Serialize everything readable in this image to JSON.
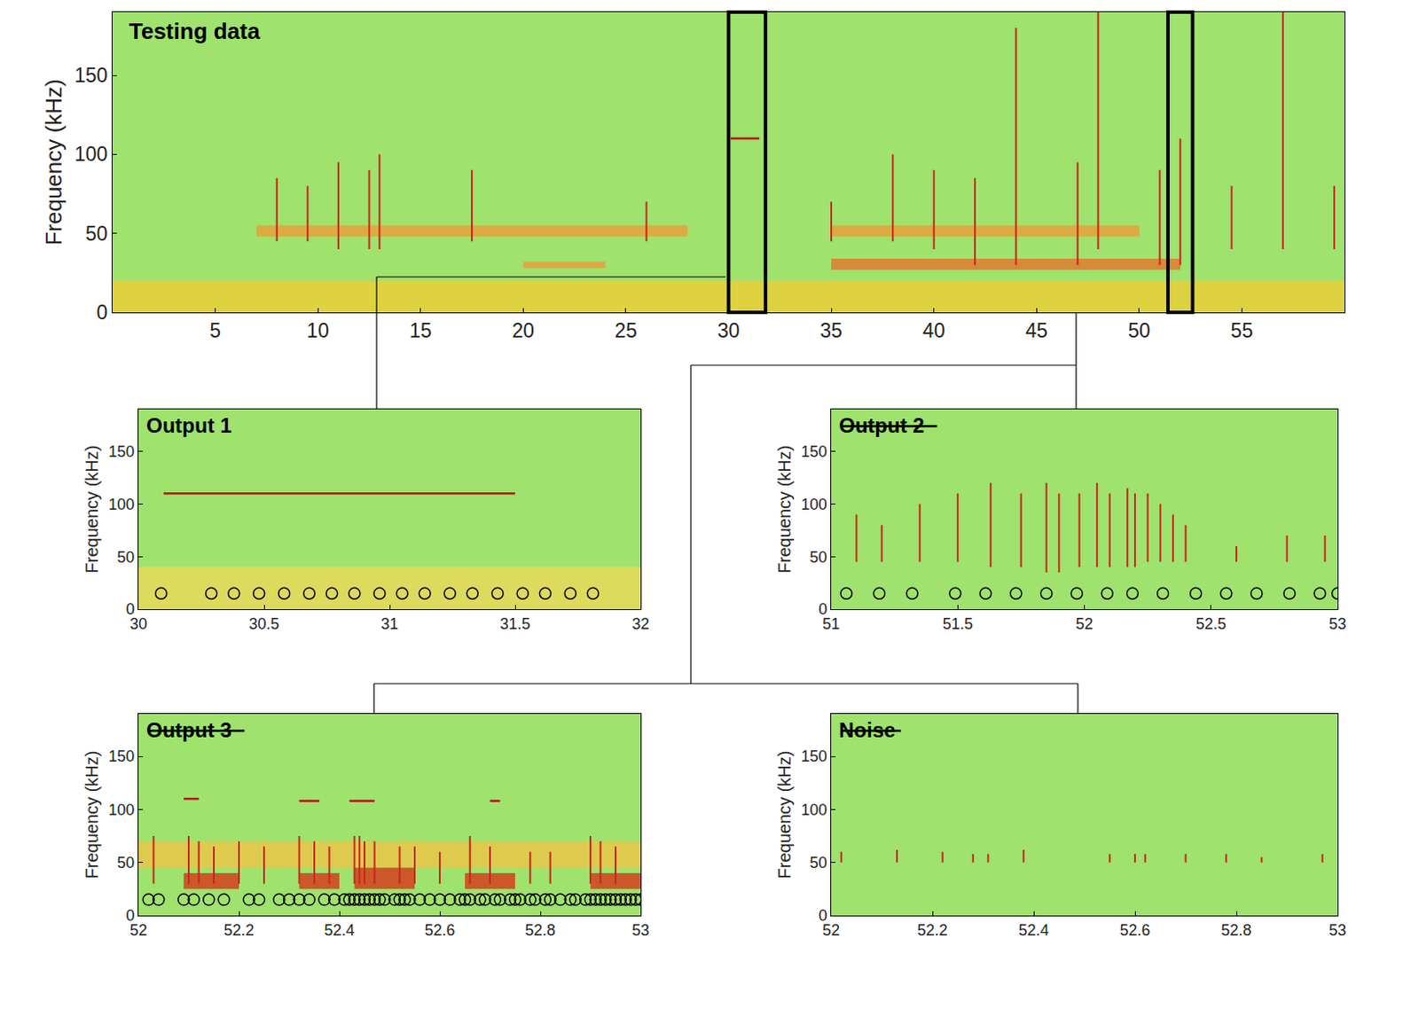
{
  "chart_data": [
    {
      "type": "spectrogram",
      "title": "Testing data",
      "ylabel": "Frequency (kHz)",
      "xlim": [
        0,
        60
      ],
      "xticks": [
        5,
        10,
        15,
        20,
        25,
        30,
        35,
        40,
        45,
        50,
        55
      ],
      "ylim": [
        0,
        190
      ],
      "yticks": [
        0,
        50,
        100,
        150
      ],
      "bands": [
        {
          "x": [
            0,
            60
          ],
          "y": [
            0,
            20
          ],
          "color": "#e9cf3a"
        },
        {
          "x": [
            7,
            28
          ],
          "y": [
            48,
            55
          ],
          "color": "#e8a03a"
        },
        {
          "x": [
            35,
            50
          ],
          "y": [
            48,
            55
          ],
          "color": "#e8a03a"
        },
        {
          "x": [
            35,
            52
          ],
          "y": [
            27,
            34
          ],
          "color": "#e07a2e"
        },
        {
          "x": [
            20,
            24
          ],
          "y": [
            28,
            32
          ],
          "color": "#e8a03a"
        }
      ],
      "clicks": [
        [
          8,
          45,
          85
        ],
        [
          9.5,
          45,
          80
        ],
        [
          11,
          40,
          95
        ],
        [
          12.5,
          40,
          90
        ],
        [
          13,
          40,
          100
        ],
        [
          17.5,
          45,
          90
        ],
        [
          26,
          45,
          70
        ],
        [
          35,
          45,
          70
        ],
        [
          38,
          45,
          100
        ],
        [
          40,
          40,
          90
        ],
        [
          42,
          30,
          85
        ],
        [
          44,
          30,
          180
        ],
        [
          47,
          30,
          95
        ],
        [
          48,
          40,
          190
        ],
        [
          51,
          30,
          90
        ],
        [
          52,
          30,
          110
        ],
        [
          54.5,
          40,
          80
        ],
        [
          57,
          40,
          190
        ],
        [
          59.5,
          40,
          80
        ]
      ],
      "tonals": [
        [
          30.1,
          31.5,
          110
        ]
      ],
      "highlights": [
        [
          30,
          31.8
        ],
        [
          51.4,
          52.6
        ]
      ]
    },
    {
      "type": "spectrogram",
      "title": "Output 1",
      "ylabel": "Frequency (kHz)",
      "xlim": [
        30,
        32
      ],
      "xticks": [
        30,
        30.5,
        31,
        31.5,
        32
      ],
      "ylim": [
        0,
        190
      ],
      "yticks": [
        0,
        50,
        100,
        150
      ],
      "bands": [
        {
          "x": [
            30,
            32
          ],
          "y": [
            0,
            40
          ],
          "color": "#e9d85a"
        }
      ],
      "clicks": [],
      "tonals": [
        [
          30.1,
          31.5,
          110
        ]
      ],
      "detections": [
        30.09,
        30.29,
        30.38,
        30.48,
        30.58,
        30.68,
        30.77,
        30.86,
        30.96,
        31.05,
        31.14,
        31.24,
        31.33,
        31.43,
        31.53,
        31.62,
        31.72,
        31.81
      ],
      "detection_freq": 15
    },
    {
      "type": "spectrogram",
      "title": "Output 2",
      "line_style": "strikethrough",
      "ylabel": "Frequency (kHz)",
      "xlim": [
        51,
        53
      ],
      "xticks": [
        51,
        51.5,
        52,
        52.5,
        53
      ],
      "ylim": [
        0,
        190
      ],
      "yticks": [
        0,
        50,
        100,
        150
      ],
      "bands": [],
      "clicks": [
        [
          51.1,
          45,
          90
        ],
        [
          51.2,
          45,
          80
        ],
        [
          51.35,
          45,
          100
        ],
        [
          51.5,
          45,
          110
        ],
        [
          51.63,
          40,
          120
        ],
        [
          51.75,
          40,
          110
        ],
        [
          51.85,
          35,
          120
        ],
        [
          51.9,
          35,
          110
        ],
        [
          51.98,
          40,
          110
        ],
        [
          52.05,
          40,
          120
        ],
        [
          52.1,
          40,
          110
        ],
        [
          52.17,
          40,
          115
        ],
        [
          52.2,
          40,
          110
        ],
        [
          52.25,
          45,
          110
        ],
        [
          52.3,
          45,
          100
        ],
        [
          52.35,
          45,
          90
        ],
        [
          52.4,
          45,
          80
        ],
        [
          52.6,
          45,
          60
        ],
        [
          52.8,
          45,
          70
        ],
        [
          52.95,
          45,
          70
        ]
      ],
      "tonals": [],
      "detections": [
        51.06,
        51.19,
        51.32,
        51.49,
        51.61,
        51.73,
        51.85,
        51.97,
        52.09,
        52.19,
        52.31,
        52.44,
        52.56,
        52.68,
        52.81,
        52.93,
        53.0
      ],
      "detection_freq": 15
    },
    {
      "type": "spectrogram",
      "title": "Output 3",
      "line_style": "strikethrough",
      "ylabel": "Frequency (kHz)",
      "xlim": [
        52,
        53
      ],
      "xticks": [
        52,
        52.2,
        52.4,
        52.6,
        52.8,
        53
      ],
      "ylim": [
        0,
        190
      ],
      "yticks": [
        0,
        50,
        100,
        150
      ],
      "bands": [
        {
          "x": [
            52,
            53
          ],
          "y": [
            45,
            70
          ],
          "color": "#e9c64a"
        },
        {
          "x": [
            52.09,
            52.2
          ],
          "y": [
            25,
            40
          ],
          "color": "#d4401f"
        },
        {
          "x": [
            52.32,
            52.4
          ],
          "y": [
            25,
            40
          ],
          "color": "#d4401f"
        },
        {
          "x": [
            52.43,
            52.55
          ],
          "y": [
            25,
            45
          ],
          "color": "#d4401f"
        },
        {
          "x": [
            52.65,
            52.75
          ],
          "y": [
            25,
            40
          ],
          "color": "#d4401f"
        },
        {
          "x": [
            52.9,
            53
          ],
          "y": [
            25,
            40
          ],
          "color": "#d4401f"
        }
      ],
      "clicks": [
        [
          52.03,
          30,
          75
        ],
        [
          52.1,
          30,
          75
        ],
        [
          52.12,
          30,
          70
        ],
        [
          52.15,
          30,
          65
        ],
        [
          52.2,
          30,
          70
        ],
        [
          52.25,
          30,
          65
        ],
        [
          52.32,
          30,
          75
        ],
        [
          52.35,
          30,
          70
        ],
        [
          52.38,
          30,
          65
        ],
        [
          52.43,
          30,
          75
        ],
        [
          52.44,
          30,
          75
        ],
        [
          52.45,
          30,
          70
        ],
        [
          52.47,
          30,
          70
        ],
        [
          52.52,
          30,
          65
        ],
        [
          52.55,
          30,
          65
        ],
        [
          52.6,
          30,
          60
        ],
        [
          52.66,
          30,
          75
        ],
        [
          52.7,
          30,
          65
        ],
        [
          52.78,
          30,
          60
        ],
        [
          52.82,
          30,
          60
        ],
        [
          52.9,
          30,
          75
        ],
        [
          52.92,
          30,
          70
        ],
        [
          52.95,
          30,
          65
        ]
      ],
      "tonals": [
        [
          52.09,
          52.12,
          110
        ],
        [
          52.32,
          52.36,
          108
        ],
        [
          52.42,
          52.47,
          108
        ],
        [
          52.7,
          52.72,
          108
        ]
      ],
      "detections": [
        52.02,
        52.04,
        52.09,
        52.11,
        52.14,
        52.17,
        52.22,
        52.24,
        52.28,
        52.3,
        52.32,
        52.34,
        52.37,
        52.39,
        52.41,
        52.42,
        52.43,
        52.44,
        52.45,
        52.46,
        52.47,
        52.48,
        52.49,
        52.51,
        52.52,
        52.53,
        52.54,
        52.56,
        52.58,
        52.6,
        52.62,
        52.64,
        52.65,
        52.66,
        52.68,
        52.69,
        52.71,
        52.72,
        52.74,
        52.75,
        52.76,
        52.78,
        52.79,
        52.81,
        52.82,
        52.84,
        52.86,
        52.87,
        52.89,
        52.9,
        52.91,
        52.92,
        52.93,
        52.94,
        52.95,
        52.96,
        52.97,
        52.98,
        52.99,
        53.0
      ],
      "detection_freq": 15
    },
    {
      "type": "spectrogram",
      "title": "Noise",
      "line_style": "strikethrough",
      "ylabel": "Frequency (kHz)",
      "xlim": [
        52,
        53
      ],
      "xticks": [
        52,
        52.2,
        52.4,
        52.6,
        52.8,
        53
      ],
      "ylim": [
        0,
        190
      ],
      "yticks": [
        0,
        50,
        100,
        150
      ],
      "bands": [],
      "clicks": [
        [
          52.02,
          50,
          60
        ],
        [
          52.13,
          50,
          62
        ],
        [
          52.22,
          50,
          60
        ],
        [
          52.28,
          50,
          58
        ],
        [
          52.31,
          50,
          58
        ],
        [
          52.38,
          50,
          62
        ],
        [
          52.55,
          50,
          58
        ],
        [
          52.6,
          50,
          58
        ],
        [
          52.62,
          50,
          58
        ],
        [
          52.7,
          50,
          58
        ],
        [
          52.78,
          50,
          58
        ],
        [
          52.85,
          50,
          55
        ],
        [
          52.97,
          50,
          58
        ]
      ],
      "tonals": []
    }
  ]
}
